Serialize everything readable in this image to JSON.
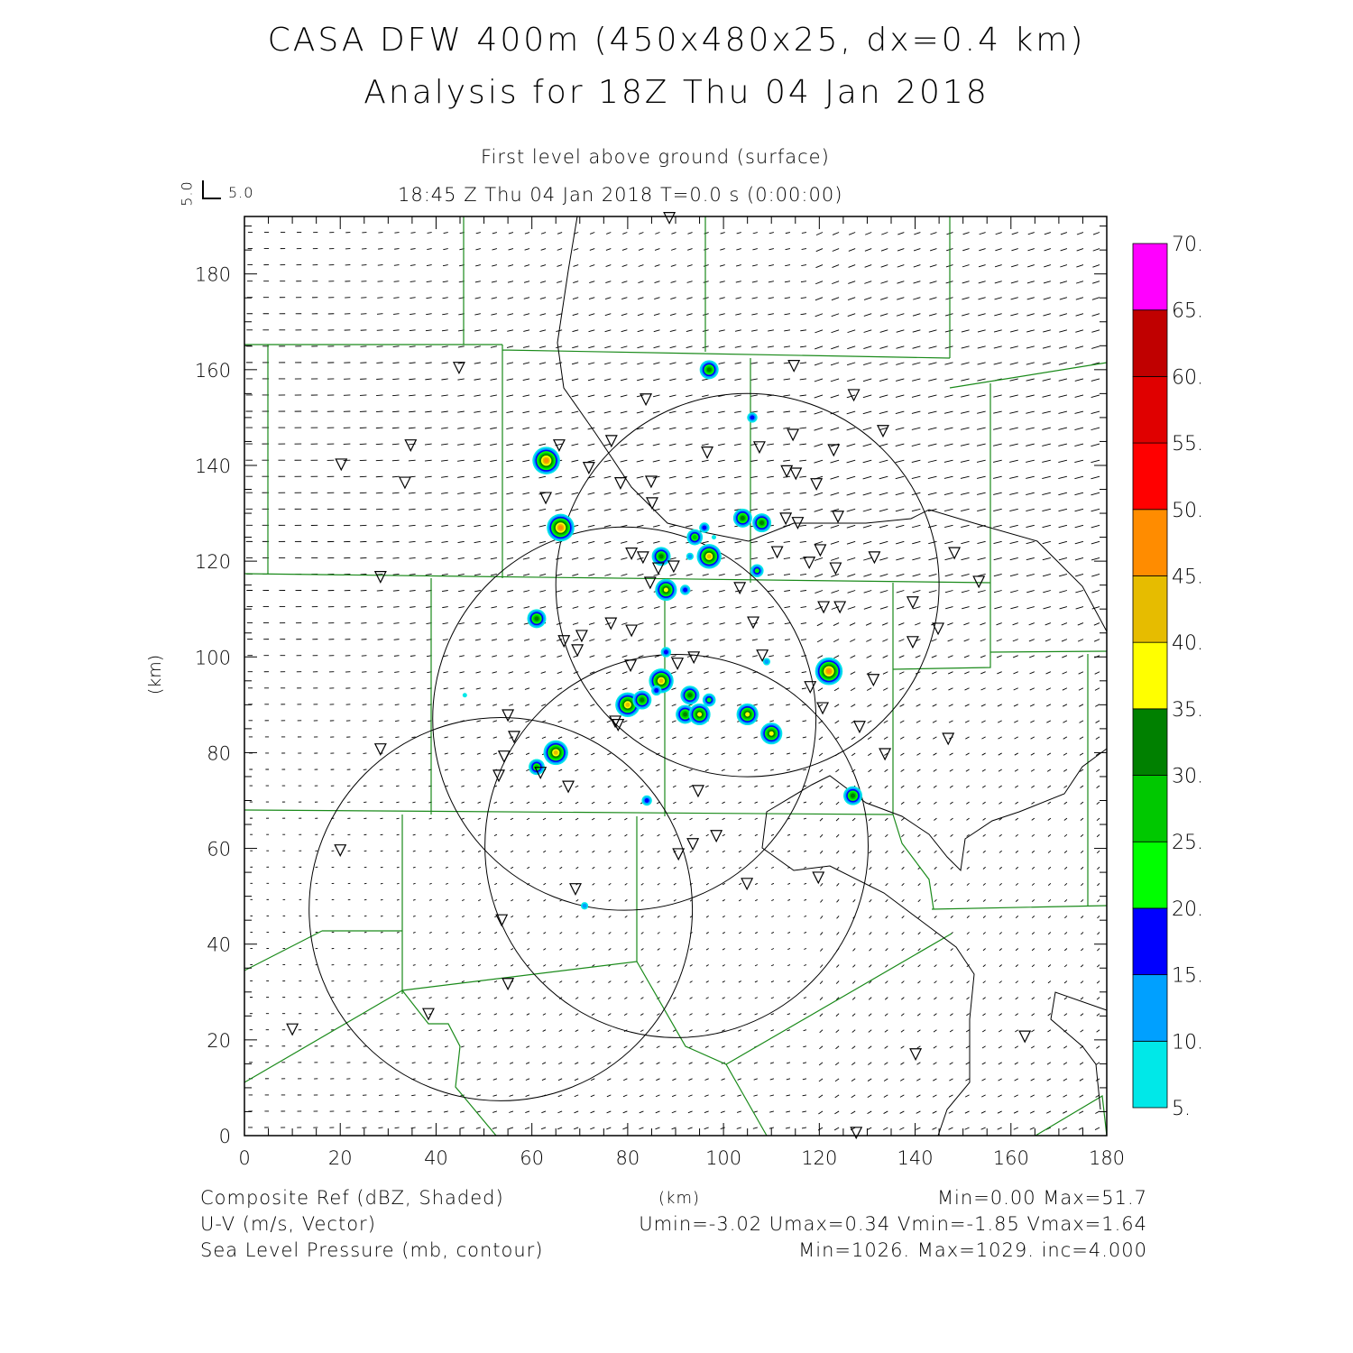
{
  "header": {
    "title_line1": "CASA DFW 400m (450x480x25, dx=0.4 km)",
    "title_line2": "Analysis for 18Z Thu 04 Jan 2018",
    "level": "First level above ground (surface)",
    "valid_time": "18:45 Z Thu 04 Jan 2018    T=0.0 s (0:00:00)",
    "ref_vector_u": "5.0",
    "ref_vector_v": "5.0"
  },
  "footer": {
    "field1_label": "Composite Ref (dBZ, Shaded)",
    "field1_stats": "Min=0.00 Max=51.7",
    "field2_label": "U-V (m/s, Vector)",
    "field2_stats": "Umin=-3.02 Umax=0.34 Vmin=-1.85 Vmax=1.64",
    "field3_label": "Sea Level Pressure (mb, contour)",
    "field3_stats": "Min=1026. Max=1029. inc=4.000",
    "xunits": "(km)"
  },
  "chart_data": {
    "type": "heatmap",
    "title": "CASA DFW 400m (450x480x25, dx=0.4 km)",
    "xlabel": "(km)",
    "ylabel": "(km)",
    "xlim": [
      0,
      180
    ],
    "ylim": [
      0,
      192
    ],
    "xticks": [
      "0",
      "20",
      "40",
      "60",
      "80",
      "100",
      "120",
      "140",
      "160",
      "180"
    ],
    "yticks": [
      "0",
      "20",
      "40",
      "60",
      "80",
      "100",
      "120",
      "140",
      "160",
      "180"
    ],
    "colorbar": {
      "levels": [
        "5.",
        "10.",
        "15.",
        "20.",
        "25.",
        "30.",
        "35.",
        "40.",
        "45.",
        "50.",
        "55.",
        "60.",
        "65.",
        "70."
      ],
      "colors": [
        "#00e8e8",
        "#00a0ff",
        "#0000ff",
        "#00ff00",
        "#00c800",
        "#008000",
        "#ffff00",
        "#e6bc00",
        "#ff8c00",
        "#ff0000",
        "#e00000",
        "#c00000",
        "#ff00ff"
      ]
    },
    "reflectivity_cells": [
      {
        "x": 63,
        "y": 141,
        "dbz": 48
      },
      {
        "x": 66,
        "y": 127,
        "dbz": 46
      },
      {
        "x": 97,
        "y": 160,
        "dbz": 32
      },
      {
        "x": 106,
        "y": 150,
        "dbz": 16
      },
      {
        "x": 94,
        "y": 125,
        "dbz": 28
      },
      {
        "x": 96,
        "y": 127,
        "dbz": 18
      },
      {
        "x": 104,
        "y": 129,
        "dbz": 30
      },
      {
        "x": 108,
        "y": 128,
        "dbz": 30
      },
      {
        "x": 87,
        "y": 121,
        "dbz": 32
      },
      {
        "x": 97,
        "y": 121,
        "dbz": 42
      },
      {
        "x": 88,
        "y": 114,
        "dbz": 36
      },
      {
        "x": 92,
        "y": 114,
        "dbz": 16
      },
      {
        "x": 61,
        "y": 108,
        "dbz": 32
      },
      {
        "x": 107,
        "y": 118,
        "dbz": 22
      },
      {
        "x": 88,
        "y": 101,
        "dbz": 18
      },
      {
        "x": 122,
        "y": 97,
        "dbz": 48
      },
      {
        "x": 87,
        "y": 95,
        "dbz": 40
      },
      {
        "x": 93,
        "y": 92,
        "dbz": 32
      },
      {
        "x": 97,
        "y": 91,
        "dbz": 20
      },
      {
        "x": 86,
        "y": 93,
        "dbz": 16
      },
      {
        "x": 80,
        "y": 90,
        "dbz": 42
      },
      {
        "x": 83,
        "y": 91,
        "dbz": 32
      },
      {
        "x": 92,
        "y": 88,
        "dbz": 30
      },
      {
        "x": 95,
        "y": 88,
        "dbz": 36
      },
      {
        "x": 105,
        "y": 88,
        "dbz": 38
      },
      {
        "x": 110,
        "y": 84,
        "dbz": 36
      },
      {
        "x": 65,
        "y": 80,
        "dbz": 42
      },
      {
        "x": 61,
        "y": 77,
        "dbz": 26
      },
      {
        "x": 84,
        "y": 70,
        "dbz": 16
      },
      {
        "x": 127,
        "y": 71,
        "dbz": 30
      },
      {
        "x": 71,
        "y": 48,
        "dbz": 14
      },
      {
        "x": 46,
        "y": 92,
        "dbz": 8
      },
      {
        "x": 109,
        "y": 99,
        "dbz": 10
      },
      {
        "x": 93,
        "y": 121,
        "dbz": 10
      },
      {
        "x": 98,
        "y": 125,
        "dbz": 8
      }
    ],
    "radar_range_rings_km": [
      {
        "x": 105,
        "y": 115,
        "r": 40
      },
      {
        "x": 79.3,
        "y": 87.1,
        "r": 40
      },
      {
        "x": 90.2,
        "y": 60.5,
        "r": 40
      },
      {
        "x": 53.5,
        "y": 47.3,
        "r": 40
      }
    ],
    "stations": [
      [
        88.7,
        191.7
      ],
      [
        44.8,
        160.4
      ],
      [
        83.8,
        153.8
      ],
      [
        114.7,
        160.8
      ],
      [
        127.2,
        154.7
      ],
      [
        34.7,
        144.2
      ],
      [
        20.2,
        140.2
      ],
      [
        33.5,
        136.4
      ],
      [
        65.7,
        144.2
      ],
      [
        76.6,
        145.1
      ],
      [
        96.6,
        142.7
      ],
      [
        107.5,
        143.8
      ],
      [
        114.5,
        146.4
      ],
      [
        123,
        143.2
      ],
      [
        133.3,
        147.2
      ],
      [
        71.9,
        139.5
      ],
      [
        78.5,
        136.3
      ],
      [
        84.9,
        136.6
      ],
      [
        85.1,
        132.1
      ],
      [
        62.9,
        133.2
      ],
      [
        113.2,
        138.8
      ],
      [
        115.1,
        138.3
      ],
      [
        119.4,
        136.1
      ],
      [
        123.9,
        129.3
      ],
      [
        113,
        128.9
      ],
      [
        115.5,
        128
      ],
      [
        111.2,
        121.9
      ],
      [
        117.9,
        119.7
      ],
      [
        120.2,
        122.3
      ],
      [
        123.4,
        118.5
      ],
      [
        131.5,
        120.8
      ],
      [
        148.2,
        121.7
      ],
      [
        153.3,
        115.7
      ],
      [
        28.4,
        116.7
      ],
      [
        80.8,
        121.6
      ],
      [
        83.2,
        120.8
      ],
      [
        86.4,
        118.5
      ],
      [
        89.6,
        118.9
      ],
      [
        84.7,
        115.5
      ],
      [
        103.4,
        114.4
      ],
      [
        120.9,
        110.4
      ],
      [
        124.3,
        110.4
      ],
      [
        139.5,
        111.4
      ],
      [
        106.2,
        107.2
      ],
      [
        139.5,
        103.1
      ],
      [
        144.8,
        105.9
      ],
      [
        76.5,
        107
      ],
      [
        80.8,
        105.5
      ],
      [
        70.4,
        104.4
      ],
      [
        66.7,
        103.3
      ],
      [
        69.5,
        101.4
      ],
      [
        108.1,
        100.3
      ],
      [
        93.8,
        99.9
      ],
      [
        90.4,
        98.6
      ],
      [
        80.6,
        98.2
      ],
      [
        131.3,
        95.2
      ],
      [
        118.1,
        93.7
      ],
      [
        120.7,
        89.3
      ],
      [
        128.4,
        85.4
      ],
      [
        133.7,
        79.7
      ],
      [
        146.9,
        82.9
      ],
      [
        55,
        87.8
      ],
      [
        77.4,
        86.5
      ],
      [
        78,
        85.8
      ],
      [
        56.3,
        83.3
      ],
      [
        28.4,
        80.7
      ],
      [
        54.2,
        79.2
      ],
      [
        53.1,
        75.2
      ],
      [
        61.8,
        75.8
      ],
      [
        67.6,
        72.9
      ],
      [
        94.7,
        72
      ],
      [
        20,
        59.6
      ],
      [
        93.6,
        60.9
      ],
      [
        98.5,
        62.6
      ],
      [
        90.6,
        58.8
      ],
      [
        104.9,
        52.6
      ],
      [
        119.8,
        53.9
      ],
      [
        69.1,
        51.5
      ],
      [
        53.7,
        45
      ],
      [
        55,
        31.7
      ],
      [
        38.4,
        25.4
      ],
      [
        10,
        22.2
      ],
      [
        140.1,
        17
      ],
      [
        162.9,
        20.7
      ],
      [
        127.7,
        0.6
      ]
    ],
    "wind": {
      "umin": -3.02,
      "umax": 0.34,
      "vmin": -1.85,
      "vmax": 1.64,
      "ref_speed": 5.0
    },
    "slp": {
      "min": 1026,
      "max": 1029,
      "inc": 4.0
    }
  }
}
